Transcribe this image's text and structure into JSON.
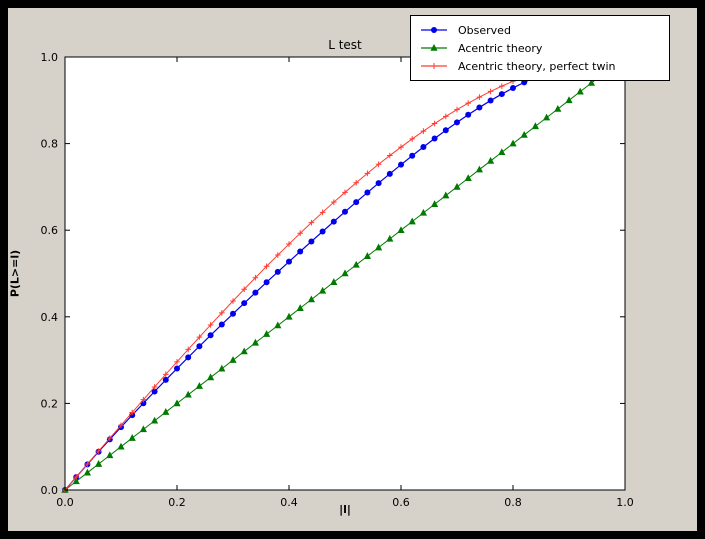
{
  "figure": {
    "background_color": "#d6d2ca",
    "frame_color": "#000000",
    "axes_background": "#ffffff"
  },
  "chart_data": {
    "type": "line",
    "title": "L test",
    "xlabel": "|l|",
    "ylabel": "P(L>=l)",
    "xlim": [
      0,
      1
    ],
    "ylim": [
      0,
      1
    ],
    "grid": false,
    "legend_position": "top-right",
    "x_ticks": [
      0,
      0.2,
      0.4,
      0.6,
      0.8,
      1.0
    ],
    "x_tick_labels": [
      "0.0",
      "0.2",
      "0.4",
      "0.6",
      "0.8",
      "1.0"
    ],
    "y_ticks": [
      0,
      0.2,
      0.4,
      0.6,
      0.8,
      1.0
    ],
    "y_tick_labels": [
      "0.0",
      "0.2",
      "0.4",
      "0.6",
      "0.8",
      "1.0"
    ],
    "x": [
      0,
      0.02,
      0.04,
      0.06,
      0.08,
      0.1,
      0.12,
      0.14,
      0.16,
      0.18,
      0.2,
      0.22,
      0.24,
      0.26,
      0.28,
      0.3,
      0.32,
      0.34,
      0.36,
      0.38,
      0.4,
      0.42,
      0.44,
      0.46,
      0.48,
      0.5,
      0.52,
      0.54,
      0.56,
      0.58,
      0.6,
      0.62,
      0.64,
      0.66,
      0.68,
      0.7,
      0.72,
      0.74,
      0.76,
      0.78,
      0.8,
      0.82,
      0.84,
      0.86,
      0.88,
      0.9,
      0.92,
      0.94,
      0.96,
      0.98,
      1
    ],
    "series": [
      {
        "name": "Observed",
        "color": "#0000ee",
        "marker": "circle",
        "line_width": 1.2,
        "values": [
          0,
          0.0298,
          0.0593,
          0.0883,
          0.1169,
          0.1452,
          0.173,
          0.2004,
          0.2275,
          0.2542,
          0.2805,
          0.3064,
          0.332,
          0.3573,
          0.3823,
          0.407,
          0.4315,
          0.4557,
          0.4798,
          0.5037,
          0.5273,
          0.5508,
          0.574,
          0.597,
          0.6199,
          0.6425,
          0.6649,
          0.687,
          0.7088,
          0.7302,
          0.7513,
          0.7719,
          0.7921,
          0.8117,
          0.8307,
          0.849,
          0.8667,
          0.8835,
          0.8994,
          0.9144,
          0.9285,
          0.9414,
          0.9532,
          0.9638,
          0.9732,
          0.9812,
          0.9879,
          0.9931,
          0.9969,
          0.9992,
          1
        ]
      },
      {
        "name": "Acentric theory",
        "color": "#007a00",
        "marker": "triangle",
        "line_width": 1,
        "values": [
          0,
          0.02,
          0.04,
          0.06,
          0.08,
          0.1,
          0.12,
          0.14,
          0.16,
          0.18,
          0.2,
          0.22,
          0.24,
          0.26,
          0.28,
          0.3,
          0.32,
          0.34,
          0.36,
          0.38,
          0.4,
          0.42,
          0.44,
          0.46,
          0.48,
          0.5,
          0.52,
          0.54,
          0.56,
          0.58,
          0.6,
          0.62,
          0.64,
          0.66,
          0.68,
          0.7,
          0.72,
          0.74,
          0.76,
          0.78,
          0.8,
          0.82,
          0.84,
          0.86,
          0.88,
          0.9,
          0.92,
          0.94,
          0.96,
          0.98,
          1
        ]
      },
      {
        "name": "Acentric theory, perfect twin",
        "color": "#ff3b30",
        "marker": "plus",
        "line_width": 1,
        "values": [
          0,
          0.03,
          0.06,
          0.0899,
          0.1197,
          0.1495,
          0.1791,
          0.2086,
          0.238,
          0.2671,
          0.296,
          0.3247,
          0.3531,
          0.3812,
          0.409,
          0.4365,
          0.4636,
          0.4903,
          0.5167,
          0.5426,
          0.568,
          0.593,
          0.6174,
          0.6413,
          0.6647,
          0.6875,
          0.7097,
          0.7313,
          0.7522,
          0.7724,
          0.792,
          0.8108,
          0.8289,
          0.8463,
          0.8628,
          0.8785,
          0.8934,
          0.9074,
          0.9205,
          0.9327,
          0.944,
          0.9543,
          0.9636,
          0.972,
          0.9793,
          0.9855,
          0.9907,
          0.9947,
          0.9976,
          0.9994,
          1
        ]
      }
    ]
  }
}
